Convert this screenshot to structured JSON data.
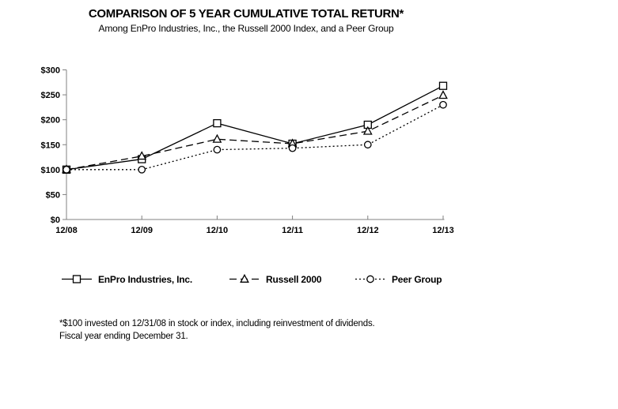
{
  "page": {
    "title": "COMPARISON OF 5 YEAR CUMULATIVE TOTAL RETURN*",
    "subtitle": "Among EnPro Industries, Inc., the Russell 2000 Index, and a Peer Group",
    "footnote_line1": "*$100 invested on 12/31/08 in stock or index, including reinvestment of dividends.",
    "footnote_line2": "Fiscal year ending December 31."
  },
  "chart_data": {
    "type": "line",
    "title": "COMPARISON OF 5 YEAR CUMULATIVE TOTAL RETURN*",
    "subtitle": "Among EnPro Industries, Inc., the Russell 2000 Index, and a Peer Group",
    "categories": [
      "12/08",
      "12/09",
      "12/10",
      "12/11",
      "12/12",
      "12/13"
    ],
    "series": [
      {
        "name": "EnPro Industries, Inc.",
        "marker": "square",
        "line_style": "solid",
        "values": [
          100,
          121,
          193,
          152,
          190,
          268
        ]
      },
      {
        "name": "Russell 2000",
        "marker": "triangle",
        "line_style": "dashed",
        "values": [
          100,
          127,
          161,
          152,
          177,
          249
        ]
      },
      {
        "name": "Peer Group",
        "marker": "circle",
        "line_style": "dotted",
        "values": [
          100,
          100,
          140,
          143,
          150,
          230
        ]
      }
    ],
    "xlabel": "",
    "ylabel": "",
    "ylim": [
      0,
      300
    ],
    "y_tick_step": 50,
    "y_tick_labels": [
      "$0",
      "$50",
      "$100",
      "$150",
      "$200",
      "$250",
      "$300"
    ],
    "grid": false,
    "legend_position": "bottom",
    "line_color": "#000000",
    "marker_fill": "#ffffff",
    "axis_color": "#808080",
    "background": "#ffffff"
  }
}
